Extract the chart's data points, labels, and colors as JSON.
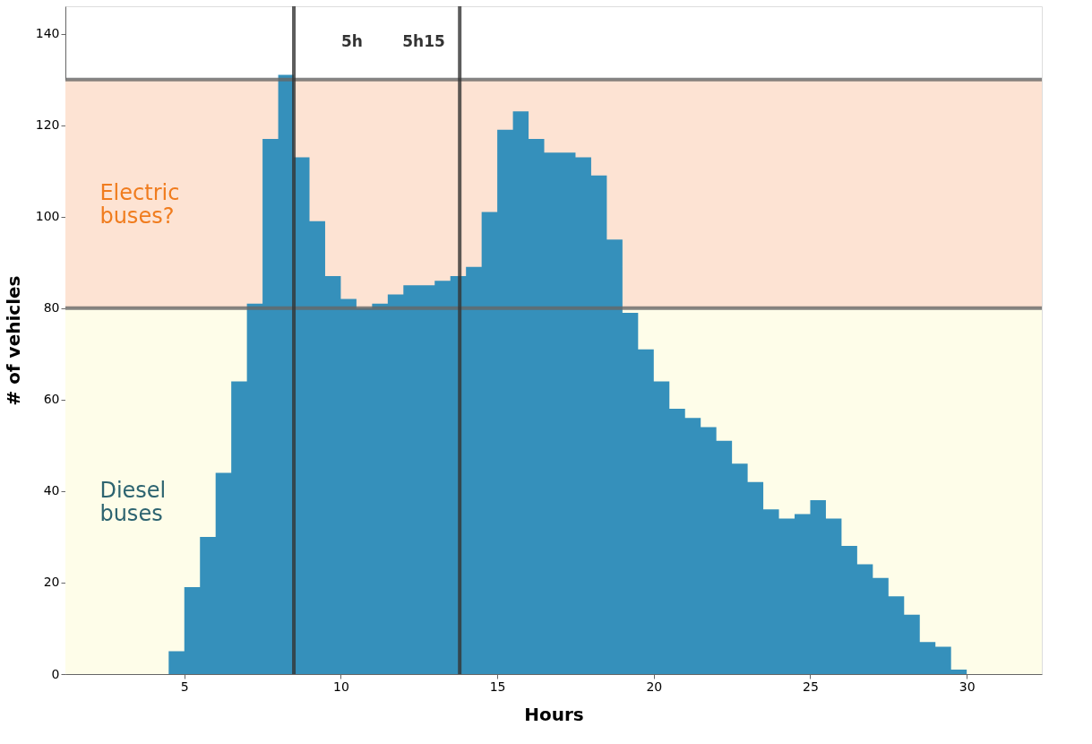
{
  "chart_data": {
    "type": "area",
    "xlabel": "Hours",
    "ylabel": "# of vehicles",
    "x": [
      4.2,
      4.5,
      5,
      5.5,
      6,
      6.5,
      7,
      7.5,
      8,
      8.5,
      9,
      9.5,
      10,
      10.5,
      11,
      11.5,
      12,
      12.5,
      13,
      13.5,
      14,
      14.5,
      15,
      15.5,
      16,
      16.5,
      17,
      17.5,
      18,
      18.5,
      19,
      19.5,
      20,
      20.5,
      21,
      21.5,
      22,
      22.5,
      23,
      23.5,
      24,
      24.5,
      25,
      25.5,
      26,
      26.5,
      27,
      27.5,
      28,
      28.5,
      29,
      29.5,
      30
    ],
    "series": [
      {
        "color": "#3590bb",
        "values": [
          0,
          5,
          19,
          30,
          44,
          64,
          81,
          117,
          131,
          113,
          99,
          87,
          82,
          80,
          81,
          83,
          85,
          85,
          86,
          87,
          89,
          101,
          119,
          123,
          117,
          114,
          114,
          113,
          109,
          95,
          79,
          71,
          64,
          58,
          56,
          54,
          51,
          46,
          42,
          36,
          34,
          35,
          38,
          34,
          28,
          24,
          21,
          17,
          13,
          7,
          6,
          1,
          0
        ]
      }
    ],
    "xlim": [
      1.2,
      32.4
    ],
    "xticks": [
      5,
      10,
      15,
      20,
      25,
      30
    ],
    "ylim": [
      0,
      146
    ],
    "yticks": [
      0,
      20,
      40,
      60,
      80,
      100,
      120,
      140
    ],
    "bands": [
      {
        "axis": "y",
        "from": 80,
        "to": 130,
        "label": "Electric buses?",
        "color": "#fde3d3"
      },
      {
        "axis": "y",
        "from": 0,
        "to": 80,
        "label": "Diesel buses",
        "color": "#fefde9"
      }
    ],
    "ref_lines": [
      {
        "axis": "y",
        "value": 130,
        "color": "#666666"
      },
      {
        "axis": "y",
        "value": 80,
        "color": "#666666"
      },
      {
        "axis": "x",
        "value": 8.5,
        "color": "#333333"
      },
      {
        "axis": "x",
        "value": 13.8,
        "color": "#333333"
      }
    ],
    "annotations": [
      "5h",
      "5h15"
    ],
    "grid": false
  }
}
